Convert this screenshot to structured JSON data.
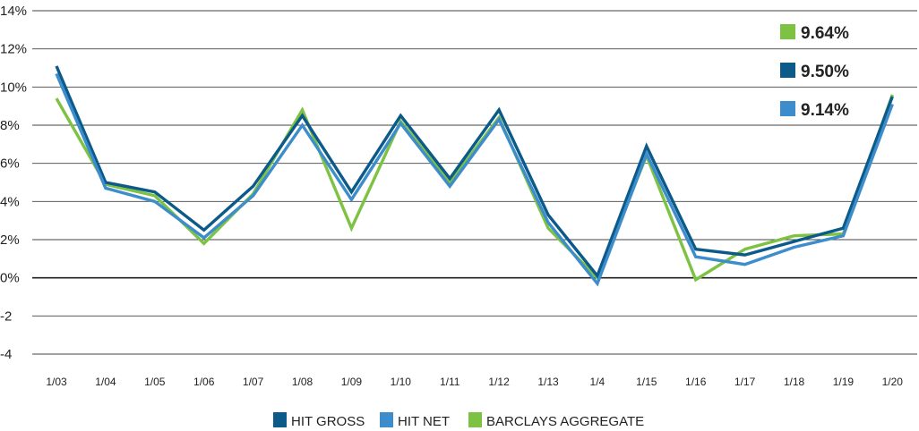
{
  "chart_data": {
    "type": "line",
    "categories": [
      "1/03",
      "1/04",
      "1/05",
      "1/06",
      "1/07",
      "1/08",
      "1/09",
      "1/10",
      "1/11",
      "1/12",
      "1/13",
      "1/4",
      "1/15",
      "1/16",
      "1/17",
      "1/18",
      "1/19",
      "1/20"
    ],
    "ylim": [
      -4,
      14
    ],
    "yticks": [
      {
        "value": 14,
        "label": "14%"
      },
      {
        "value": 12,
        "label": "12%"
      },
      {
        "value": 10,
        "label": "10%"
      },
      {
        "value": 8,
        "label": "8%"
      },
      {
        "value": 6,
        "label": "6%"
      },
      {
        "value": 4,
        "label": "4%"
      },
      {
        "value": 2,
        "label": "2%"
      },
      {
        "value": 0,
        "label": "0%"
      },
      {
        "value": -2,
        "label": "-2"
      },
      {
        "value": -4,
        "label": "-4"
      }
    ],
    "grid": true,
    "series": [
      {
        "name": "BARCLAYS AGGREGATE",
        "color": "#7dc242",
        "values": [
          9.4,
          4.9,
          4.3,
          1.8,
          4.4,
          8.8,
          2.6,
          8.2,
          5.0,
          8.4,
          2.6,
          0.0,
          6.4,
          -0.1,
          1.5,
          2.2,
          2.3,
          9.6
        ]
      },
      {
        "name": "HIT GROSS",
        "color": "#0b5a8a",
        "values": [
          11.1,
          5.0,
          4.5,
          2.5,
          4.8,
          8.5,
          4.5,
          8.5,
          5.2,
          8.8,
          3.3,
          0.1,
          6.9,
          1.5,
          1.2,
          1.9,
          2.6,
          9.5
        ]
      },
      {
        "name": "HIT NET",
        "color": "#3d8dcc",
        "values": [
          10.7,
          4.7,
          4.0,
          2.1,
          4.3,
          8.0,
          4.1,
          8.1,
          4.8,
          8.3,
          2.9,
          -0.3,
          6.5,
          1.1,
          0.7,
          1.6,
          2.2,
          9.1
        ]
      }
    ],
    "legend": {
      "placement": "bottom",
      "items": [
        {
          "label": "HIT GROSS",
          "color": "#0b5a8a"
        },
        {
          "label": "HIT NET",
          "color": "#3d8dcc"
        },
        {
          "label": "BARCLAYS AGGREGATE",
          "color": "#7dc242"
        }
      ]
    },
    "callouts": {
      "placement": "top-right",
      "items": [
        {
          "label": "9.64%",
          "color": "#7dc242"
        },
        {
          "label": "9.50%",
          "color": "#0b5a8a"
        },
        {
          "label": "9.14%",
          "color": "#3d8dcc"
        }
      ]
    }
  }
}
